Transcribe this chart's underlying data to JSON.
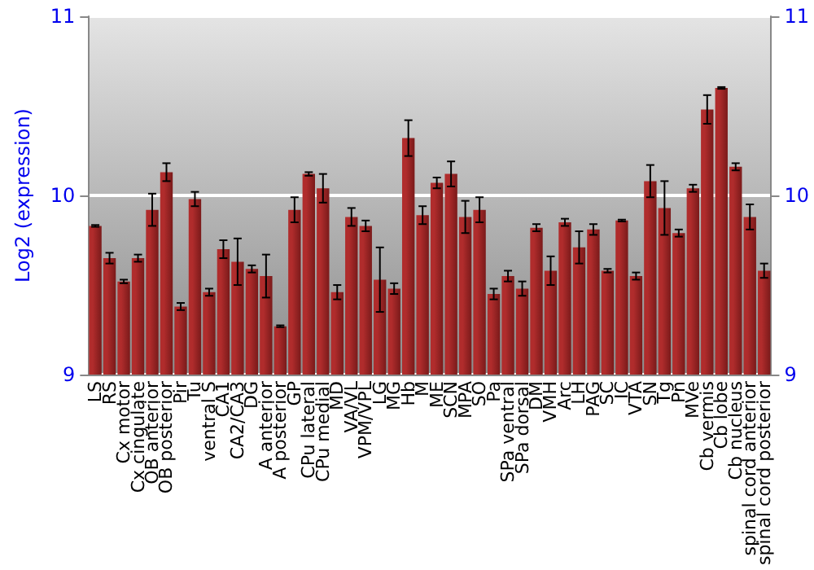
{
  "chart_data": {
    "type": "bar",
    "ylabel": "Log2 (expression)",
    "categories": [
      "LS",
      "RS",
      "Cx motor",
      "Cx cingulate",
      "OB anterior",
      "OB posterior",
      "Pir",
      "Tu",
      "ventral S",
      "CA1",
      "CA2/CA3",
      "DG",
      "A anterior",
      "A posterior",
      "GP",
      "CPu lateral",
      "CPu medial",
      "MD",
      "VA/VL",
      "VPM/VPL",
      "LG",
      "MG",
      "Hb",
      "M",
      "ME",
      "SCN",
      "MPA",
      "SO",
      "Pa",
      "SPa ventral",
      "SPa dorsal",
      "DM",
      "VMH",
      "Arc",
      "LH",
      "PAG",
      "SC",
      "IC",
      "VTA",
      "SN",
      "Tg",
      "Pn",
      "MVe",
      "Cb vermis",
      "Cb lobe",
      "Cb nucleus",
      "spinal cord anterior",
      "spinal cord posterior"
    ],
    "values": [
      9.83,
      9.65,
      9.52,
      9.65,
      9.92,
      10.13,
      9.38,
      9.98,
      9.46,
      9.7,
      9.63,
      9.59,
      9.55,
      9.27,
      9.92,
      10.12,
      10.04,
      9.46,
      9.88,
      9.83,
      9.53,
      9.48,
      10.32,
      9.89,
      10.07,
      10.12,
      9.88,
      9.92,
      9.45,
      9.55,
      9.48,
      9.82,
      9.58,
      9.85,
      9.71,
      9.81,
      9.58,
      9.86,
      9.55,
      10.08,
      9.93,
      9.79,
      10.04,
      10.48,
      10.6,
      10.16,
      9.88,
      9.58
    ],
    "errors": [
      0.005,
      0.03,
      0.01,
      0.02,
      0.09,
      0.05,
      0.02,
      0.04,
      0.02,
      0.05,
      0.13,
      0.02,
      0.12,
      0.005,
      0.07,
      0.01,
      0.08,
      0.04,
      0.05,
      0.03,
      0.18,
      0.03,
      0.1,
      0.05,
      0.03,
      0.07,
      0.09,
      0.07,
      0.03,
      0.03,
      0.04,
      0.02,
      0.08,
      0.02,
      0.09,
      0.03,
      0.01,
      0.005,
      0.02,
      0.09,
      0.15,
      0.02,
      0.02,
      0.08,
      0.005,
      0.02,
      0.07,
      0.04
    ],
    "color": "#b02c2c",
    "ylim": [
      9,
      11
    ],
    "yticks": [
      9,
      10,
      11
    ],
    "y2lim": [
      9,
      11
    ],
    "y2ticks": [
      9,
      10,
      11
    ],
    "grid": "y"
  }
}
